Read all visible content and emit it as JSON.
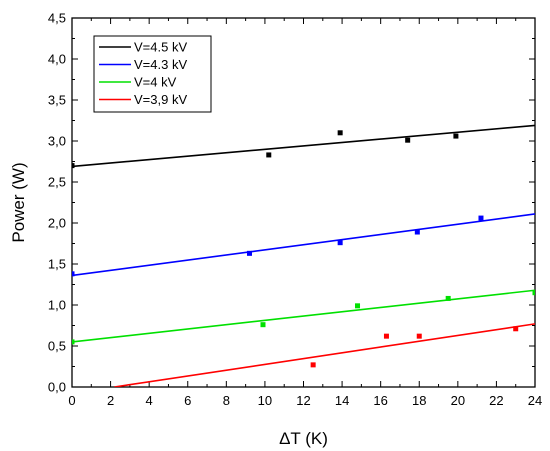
{
  "chart_data": {
    "type": "scatter",
    "title": "",
    "xlabel": "ΔT (K)",
    "ylabel": "Power (W)",
    "xlim": [
      0,
      24
    ],
    "ylim": [
      0,
      4.5
    ],
    "xticks": [
      0,
      2,
      4,
      6,
      8,
      10,
      12,
      14,
      16,
      18,
      20,
      22,
      24
    ],
    "yticks": [
      0,
      0.5,
      1,
      1.5,
      2,
      2.5,
      3,
      3.5,
      4,
      4.5
    ],
    "xtick_labels": [
      "0",
      "2",
      "4",
      "6",
      "8",
      "10",
      "12",
      "14",
      "16",
      "18",
      "20",
      "22",
      "24"
    ],
    "ytick_labels": [
      "0,0",
      "0,5",
      "1,0",
      "1,5",
      "2,0",
      "2,5",
      "3,0",
      "3,5",
      "4,0",
      "4,5"
    ],
    "grid": false,
    "legend_position": "top-left",
    "series": [
      {
        "name": "V=4.5 kV",
        "color": "#000000",
        "points": [
          [
            0,
            2.7
          ],
          [
            10.2,
            2.83
          ],
          [
            13.9,
            3.1
          ],
          [
            17.4,
            3.01
          ],
          [
            19.9,
            3.06
          ]
        ],
        "fit": [
          [
            0,
            2.69
          ],
          [
            24,
            3.19
          ]
        ]
      },
      {
        "name": "V=4.3 kV",
        "color": "#0000ff",
        "points": [
          [
            0,
            1.38
          ],
          [
            9.2,
            1.63
          ],
          [
            13.9,
            1.76
          ],
          [
            17.9,
            1.89
          ],
          [
            21.2,
            2.06
          ]
        ],
        "fit": [
          [
            0,
            1.36
          ],
          [
            24,
            2.11
          ]
        ]
      },
      {
        "name": "V=4 kV",
        "color": "#00e000",
        "points": [
          [
            0,
            0.55
          ],
          [
            9.9,
            0.76
          ],
          [
            14.8,
            0.99
          ],
          [
            19.5,
            1.08
          ],
          [
            24,
            1.15
          ]
        ],
        "fit": [
          [
            0,
            0.55
          ],
          [
            24,
            1.18
          ]
        ]
      },
      {
        "name": "V=3,9 kV",
        "color": "#ff0000",
        "points": [
          [
            12.5,
            0.27
          ],
          [
            16.3,
            0.62
          ],
          [
            18,
            0.62
          ],
          [
            23,
            0.71
          ]
        ],
        "fit": [
          [
            2.2,
            0
          ],
          [
            24,
            0.77
          ]
        ]
      }
    ]
  }
}
